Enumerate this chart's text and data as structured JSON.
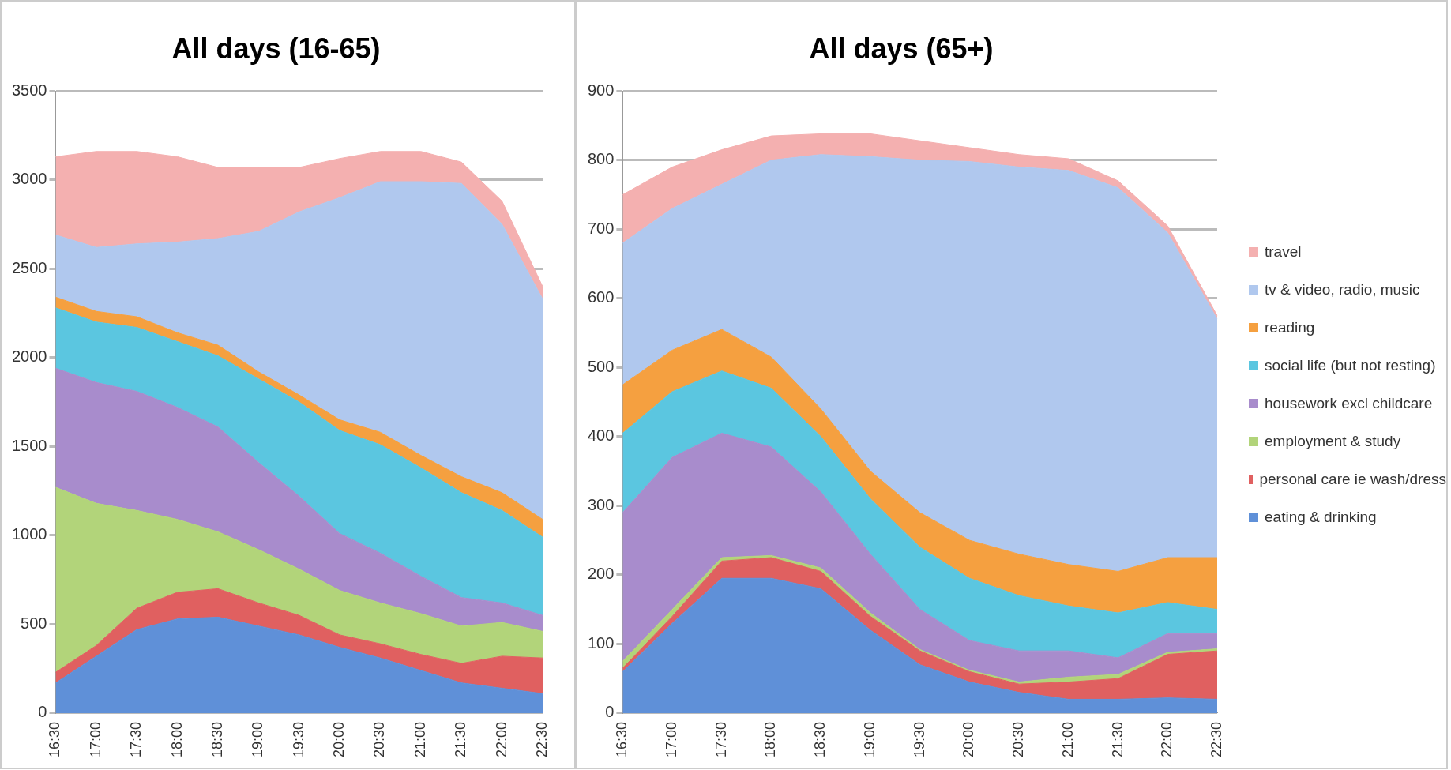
{
  "chart_data": [
    {
      "type": "area",
      "title": "All days (16-65)",
      "stacked": true,
      "grid": "y",
      "legend": false,
      "marker": "none",
      "categories": [
        "16:30",
        "17:00",
        "17:30",
        "18:00",
        "18:30",
        "19:00",
        "19:30",
        "20:00",
        "20:30",
        "21:00",
        "21:30",
        "22:00",
        "22:30"
      ],
      "ylim": [
        0,
        3500
      ],
      "yticks": [
        0,
        500,
        1000,
        1500,
        2000,
        2500,
        3000,
        3500
      ],
      "series": [
        {
          "color": "#5f90d8",
          "values": [
            170,
            320,
            470,
            530,
            540,
            490,
            440,
            370,
            310,
            240,
            170,
            140,
            110
          ]
        },
        {
          "color": "#e06060",
          "values": [
            60,
            60,
            120,
            150,
            160,
            130,
            110,
            70,
            80,
            90,
            110,
            180,
            200
          ]
        },
        {
          "color": "#b2d47a",
          "values": [
            1040,
            800,
            550,
            410,
            320,
            300,
            260,
            250,
            230,
            230,
            210,
            190,
            150
          ]
        },
        {
          "color": "#a88ccc",
          "values": [
            670,
            680,
            670,
            630,
            590,
            490,
            410,
            320,
            280,
            210,
            160,
            110,
            90
          ]
        },
        {
          "color": "#5bc6e0",
          "values": [
            340,
            340,
            360,
            370,
            400,
            470,
            530,
            580,
            610,
            610,
            590,
            520,
            440
          ]
        },
        {
          "color": "#f5a040",
          "values": [
            60,
            60,
            60,
            50,
            60,
            40,
            40,
            60,
            70,
            70,
            90,
            100,
            100
          ]
        },
        {
          "color": "#b0c8ee",
          "values": [
            350,
            360,
            410,
            510,
            600,
            790,
            1030,
            1250,
            1410,
            1540,
            1650,
            1510,
            1240
          ]
        },
        {
          "color": "#f4b0b0",
          "values": [
            440,
            540,
            520,
            480,
            400,
            360,
            250,
            220,
            170,
            170,
            120,
            130,
            70
          ]
        }
      ]
    },
    {
      "type": "area",
      "title": "All days (65+)",
      "stacked": true,
      "grid": "y",
      "legend": "right",
      "marker": "none",
      "categories": [
        "16:30",
        "17:00",
        "17:30",
        "18:00",
        "18:30",
        "19:00",
        "19:30",
        "20:00",
        "20:30",
        "21:00",
        "21:30",
        "22:00",
        "22:30"
      ],
      "ylim": [
        0,
        900
      ],
      "yticks": [
        0,
        100,
        200,
        300,
        400,
        500,
        600,
        700,
        800,
        900
      ],
      "series": [
        {
          "name": "eating & drinking",
          "color": "#5f90d8",
          "values": [
            60,
            130,
            195,
            195,
            180,
            120,
            70,
            45,
            30,
            20,
            20,
            22,
            20
          ]
        },
        {
          "name": "personal care ie wash/dress",
          "color": "#e06060",
          "values": [
            5,
            10,
            25,
            30,
            25,
            20,
            20,
            15,
            12,
            25,
            30,
            63,
            70
          ]
        },
        {
          "name": "employment & study",
          "color": "#b2d47a",
          "values": [
            10,
            10,
            5,
            3,
            5,
            5,
            2,
            2,
            3,
            7,
            6,
            3,
            3
          ]
        },
        {
          "name": "housework excl childcare",
          "color": "#a88ccc",
          "values": [
            215,
            220,
            180,
            157,
            110,
            85,
            58,
            43,
            45,
            38,
            24,
            27,
            22
          ]
        },
        {
          "name": "social life (but not resting)",
          "color": "#5bc6e0",
          "values": [
            115,
            95,
            90,
            85,
            80,
            80,
            90,
            90,
            80,
            65,
            65,
            45,
            35
          ]
        },
        {
          "name": "reading",
          "color": "#f5a040",
          "values": [
            70,
            60,
            60,
            45,
            40,
            40,
            50,
            55,
            60,
            60,
            60,
            65,
            75
          ]
        },
        {
          "name": "tv & video, radio, music",
          "color": "#b0c8ee",
          "values": [
            205,
            205,
            210,
            285,
            368,
            455,
            510,
            548,
            560,
            570,
            555,
            470,
            345
          ]
        },
        {
          "name": "travel",
          "color": "#f4b0b0",
          "values": [
            70,
            60,
            50,
            35,
            30,
            33,
            28,
            20,
            18,
            17,
            10,
            10,
            5
          ]
        }
      ]
    }
  ]
}
